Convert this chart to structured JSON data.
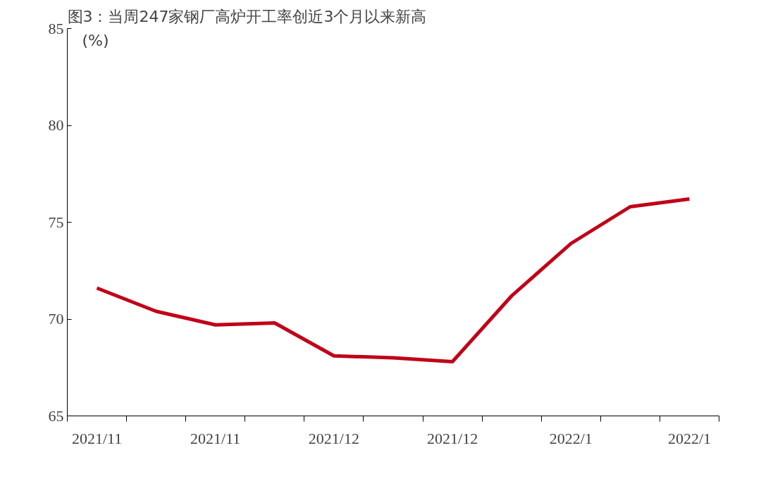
{
  "chart_data": {
    "type": "line",
    "title": "图3：当周247家钢厂高炉开工率创近3个月以来新高",
    "ylabel": "(%)",
    "categories": [
      "2021/11",
      null,
      "2021/11",
      null,
      "2021/12",
      null,
      "2021/12",
      null,
      "2022/1",
      null,
      "2022/1"
    ],
    "series": [
      {
        "color": "#c00018",
        "values": [
          71.6,
          70.4,
          69.7,
          69.8,
          68.1,
          68.0,
          67.8,
          71.2,
          73.9,
          75.8,
          76.2
        ]
      }
    ],
    "ylim": [
      65,
      85
    ],
    "yticks": [
      65,
      70,
      75,
      80,
      85
    ],
    "grid": false,
    "marker": "none",
    "line_style": "solid"
  }
}
